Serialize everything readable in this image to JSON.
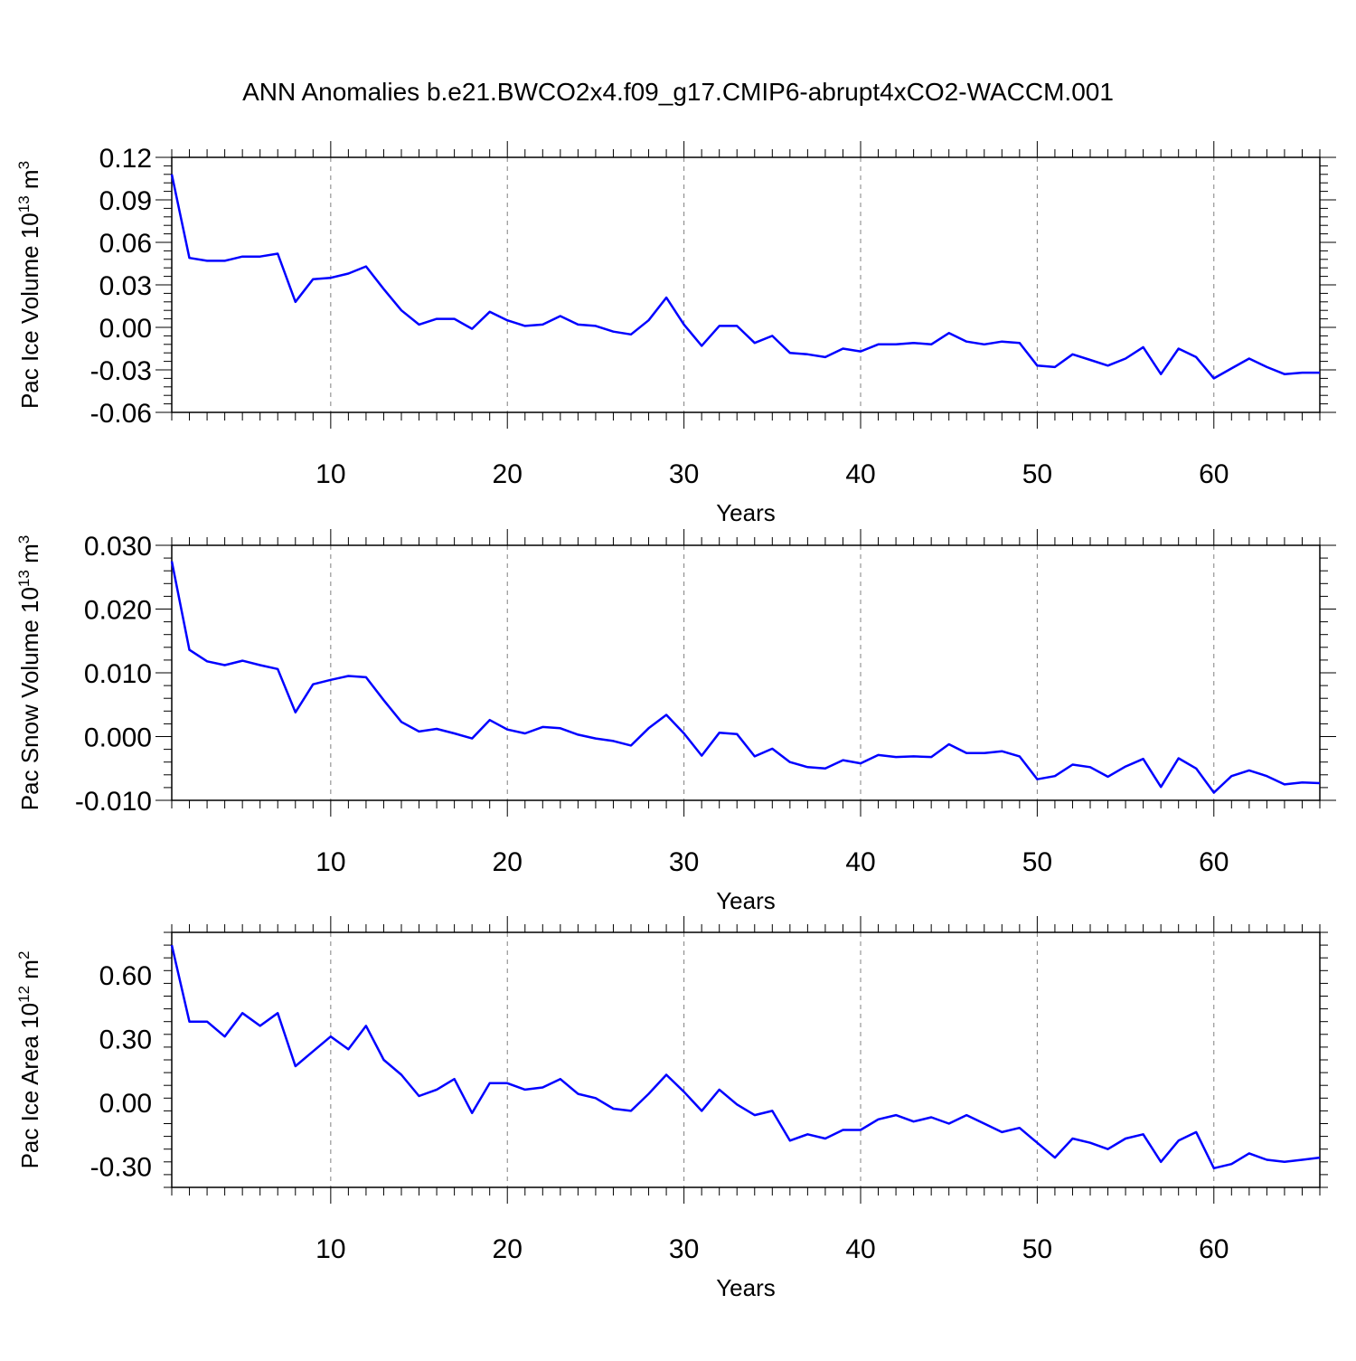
{
  "title": "ANN Anomalies b.e21.BWCO2x4.f09_g17.CMIP6-abrupt4xCO2-WACCM.001",
  "line_color": "#0000ff",
  "chart_data": [
    {
      "type": "line",
      "ylabel": {
        "base": "Pac Ice Volume 10",
        "exp": "13",
        "unit": " m",
        "unit_exp": "3"
      },
      "xlabel": "Years",
      "xlim": [
        1,
        66
      ],
      "ylim": [
        -0.06,
        0.12
      ],
      "xticks": [
        10,
        20,
        30,
        40,
        50,
        60
      ],
      "xtick_labels": [
        "10",
        "20",
        "30",
        "40",
        "50",
        "60"
      ],
      "yticks": [
        -0.06,
        -0.03,
        0.0,
        0.03,
        0.06,
        0.09,
        0.12
      ],
      "ytick_labels": [
        "-0.06",
        "-0.03",
        "0.00",
        "0.03",
        "0.06",
        "0.09",
        "0.12"
      ],
      "grid": "vertical dashed at major x ticks",
      "series": [
        {
          "x": [
            1,
            2,
            3,
            4,
            5,
            6,
            7,
            8,
            9,
            10,
            11,
            12,
            13,
            14,
            15,
            16,
            17,
            18,
            19,
            20,
            21,
            22,
            23,
            24,
            25,
            26,
            27,
            28,
            29,
            30,
            31,
            32,
            33,
            34,
            35,
            36,
            37,
            38,
            39,
            40,
            41,
            42,
            43,
            44,
            45,
            46,
            47,
            48,
            49,
            50,
            51,
            52,
            53,
            54,
            55,
            56,
            57,
            58,
            59,
            60,
            61,
            62,
            63,
            64,
            65,
            66
          ],
          "values": [
            0.108,
            0.049,
            0.047,
            0.047,
            0.05,
            0.05,
            0.052,
            0.018,
            0.034,
            0.035,
            0.038,
            0.043,
            0.027,
            0.012,
            0.002,
            0.006,
            0.006,
            -0.001,
            0.011,
            0.005,
            0.001,
            0.002,
            0.008,
            0.002,
            0.001,
            -0.003,
            -0.005,
            0.005,
            0.021,
            0.002,
            -0.013,
            0.001,
            0.001,
            -0.011,
            -0.006,
            -0.018,
            -0.019,
            -0.021,
            -0.015,
            -0.017,
            -0.012,
            -0.012,
            -0.011,
            -0.012,
            -0.004,
            -0.01,
            -0.012,
            -0.01,
            -0.011,
            -0.027,
            -0.028,
            -0.019,
            -0.023,
            -0.027,
            -0.022,
            -0.014,
            -0.033,
            -0.015,
            -0.021,
            -0.036,
            -0.029,
            -0.022,
            -0.028,
            -0.033,
            -0.032,
            -0.032
          ]
        }
      ]
    },
    {
      "type": "line",
      "ylabel": {
        "base": "Pac Snow Volume 10",
        "exp": "13",
        "unit": " m",
        "unit_exp": "3"
      },
      "xlabel": "Years",
      "xlim": [
        1,
        66
      ],
      "ylim": [
        -0.01,
        0.03
      ],
      "xticks": [
        10,
        20,
        30,
        40,
        50,
        60
      ],
      "xtick_labels": [
        "10",
        "20",
        "30",
        "40",
        "50",
        "60"
      ],
      "yticks": [
        -0.01,
        0.0,
        0.01,
        0.02,
        0.03
      ],
      "ytick_labels": [
        "-0.010",
        "0.000",
        "0.010",
        "0.020",
        "0.030"
      ],
      "grid": "vertical dashed at major x ticks",
      "series": [
        {
          "x": [
            1,
            2,
            3,
            4,
            5,
            6,
            7,
            8,
            9,
            10,
            11,
            12,
            13,
            14,
            15,
            16,
            17,
            18,
            19,
            20,
            21,
            22,
            23,
            24,
            25,
            26,
            27,
            28,
            29,
            30,
            31,
            32,
            33,
            34,
            35,
            36,
            37,
            38,
            39,
            40,
            41,
            42,
            43,
            44,
            45,
            46,
            47,
            48,
            49,
            50,
            51,
            52,
            53,
            54,
            55,
            56,
            57,
            58,
            59,
            60,
            61,
            62,
            63,
            64,
            65,
            66
          ],
          "values": [
            0.0275,
            0.0136,
            0.0118,
            0.0112,
            0.0119,
            0.0112,
            0.0106,
            0.0038,
            0.0082,
            0.0089,
            0.0095,
            0.0093,
            0.0057,
            0.0023,
            0.0008,
            0.0012,
            0.0005,
            -0.0003,
            0.0026,
            0.0011,
            0.0005,
            0.0015,
            0.0013,
            0.0003,
            -0.0003,
            -0.0007,
            -0.0014,
            0.0013,
            0.0034,
            0.0005,
            -0.003,
            0.0006,
            0.0004,
            -0.0031,
            -0.0019,
            -0.004,
            -0.0048,
            -0.005,
            -0.0037,
            -0.0042,
            -0.0029,
            -0.0032,
            -0.0031,
            -0.0032,
            -0.0012,
            -0.0026,
            -0.0026,
            -0.0023,
            -0.0031,
            -0.0067,
            -0.0062,
            -0.0044,
            -0.0048,
            -0.0063,
            -0.0047,
            -0.0035,
            -0.0079,
            -0.0034,
            -0.005,
            -0.0088,
            -0.0062,
            -0.0053,
            -0.0062,
            -0.0075,
            -0.0072,
            -0.0073
          ]
        }
      ]
    },
    {
      "type": "line",
      "ylabel": {
        "base": "Pac Ice Area 10",
        "exp": "12",
        "unit": " m",
        "unit_exp": "2"
      },
      "xlabel": "Years",
      "xlim": [
        1,
        66
      ],
      "ylim": [
        -0.4,
        0.8
      ],
      "xticks": [
        10,
        20,
        30,
        40,
        50,
        60
      ],
      "xtick_labels": [
        "10",
        "20",
        "30",
        "40",
        "50",
        "60"
      ],
      "yticks": [
        -0.3,
        0.0,
        0.3,
        0.6
      ],
      "ytick_labels": [
        "-0.30",
        "0.00",
        "0.30",
        "0.60"
      ],
      "grid": "vertical dashed at major x ticks",
      "series": [
        {
          "x": [
            1,
            2,
            3,
            4,
            5,
            6,
            7,
            8,
            9,
            10,
            11,
            12,
            13,
            14,
            15,
            16,
            17,
            18,
            19,
            20,
            21,
            22,
            23,
            24,
            25,
            26,
            27,
            28,
            29,
            30,
            31,
            32,
            33,
            34,
            35,
            36,
            37,
            38,
            39,
            40,
            41,
            42,
            43,
            44,
            45,
            46,
            47,
            48,
            49,
            50,
            51,
            52,
            53,
            54,
            55,
            56,
            57,
            58,
            59,
            60,
            61,
            62,
            63,
            64,
            65,
            66
          ],
          "values": [
            0.74,
            0.38,
            0.38,
            0.31,
            0.42,
            0.36,
            0.42,
            0.17,
            0.24,
            0.31,
            0.25,
            0.36,
            0.2,
            0.13,
            0.03,
            0.06,
            0.11,
            -0.05,
            0.09,
            0.09,
            0.06,
            0.07,
            0.11,
            0.04,
            0.02,
            -0.03,
            -0.04,
            0.04,
            0.13,
            0.05,
            -0.04,
            0.06,
            -0.01,
            -0.06,
            -0.04,
            -0.18,
            -0.15,
            -0.17,
            -0.13,
            -0.13,
            -0.08,
            -0.06,
            -0.09,
            -0.07,
            -0.1,
            -0.06,
            -0.1,
            -0.14,
            -0.12,
            -0.19,
            -0.26,
            -0.17,
            -0.19,
            -0.22,
            -0.17,
            -0.15,
            -0.28,
            -0.18,
            -0.14,
            -0.31,
            -0.29,
            -0.24,
            -0.27,
            -0.28,
            -0.27,
            -0.26
          ]
        }
      ]
    }
  ]
}
